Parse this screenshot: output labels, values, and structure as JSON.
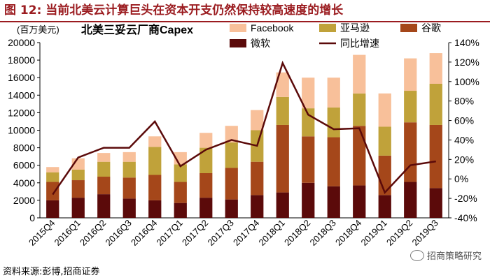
{
  "figure": {
    "label": "图 12:",
    "heading": "当前北美云计算巨头在资本开支仍然保持较高速度的增长",
    "source": "资料来源:彭博,招商证券",
    "watermark": "招商策略研究"
  },
  "chart_data": {
    "type": "bar",
    "stacked": true,
    "unit_label": "(百万美元)",
    "title": "北美三妥云厂商Capex",
    "categories": [
      "2015Q4",
      "2016Q1",
      "2016Q2",
      "2016Q3",
      "2016Q4",
      "2017Q1",
      "2017Q2",
      "2017Q3",
      "2017Q4",
      "2018Q1",
      "2018Q2",
      "2018Q3",
      "2018Q4",
      "2019Q1",
      "2019Q2",
      "2019Q3"
    ],
    "series": [
      {
        "name": "微软",
        "color": "#5b0a0a",
        "values": [
          2000,
          2300,
          2700,
          2200,
          2000,
          1700,
          2300,
          2100,
          2600,
          2900,
          4000,
          3600,
          3700,
          2600,
          4100,
          3400
        ]
      },
      {
        "name": "谷歌",
        "color": "#a5471a",
        "values": [
          2100,
          2000,
          2000,
          2400,
          2900,
          2400,
          2800,
          3600,
          3800,
          7700,
          5300,
          5600,
          6800,
          4500,
          6800,
          7200
        ]
      },
      {
        "name": "亚马逊",
        "color": "#c0a23a",
        "values": [
          1100,
          1200,
          1700,
          1800,
          3200,
          2000,
          2900,
          2900,
          3600,
          3200,
          3200,
          3400,
          3700,
          3300,
          3600,
          4700
        ]
      },
      {
        "name": "Facebook",
        "color": "#f8c09a",
        "values": [
          600,
          1300,
          1000,
          1100,
          1200,
          1400,
          1700,
          1900,
          2300,
          2800,
          3500,
          3400,
          4400,
          3800,
          3700,
          3500
        ]
      }
    ],
    "line": {
      "name": "同比增速",
      "color": "#5b0a0a",
      "values": [
        -16,
        22,
        32,
        32,
        59,
        13,
        30,
        40,
        34,
        119,
        66,
        51,
        52,
        -14,
        14,
        18
      ]
    },
    "y_left": {
      "min": 0,
      "max": 20000,
      "step": 2000,
      "ticks": [
        "0",
        "2000",
        "4000",
        "6000",
        "8000",
        "10000",
        "12000",
        "14000",
        "16000",
        "18000",
        "20000"
      ]
    },
    "y_right": {
      "min": -40,
      "max": 140,
      "step": 20,
      "ticks": [
        "-40%",
        "-20%",
        "0%",
        "20%",
        "40%",
        "60%",
        "80%",
        "100%",
        "120%",
        "140%"
      ]
    },
    "legend": {
      "position": "top-right",
      "order": [
        "Facebook",
        "亚马逊",
        "谷歌",
        "微软",
        "同比增速"
      ]
    }
  }
}
